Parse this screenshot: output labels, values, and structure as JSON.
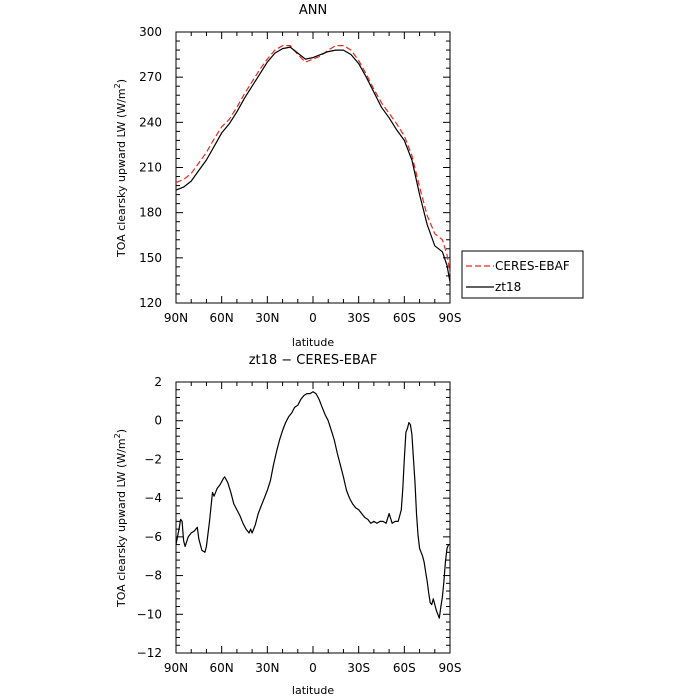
{
  "chart_data": [
    {
      "type": "line",
      "title": "ANN",
      "xlabel": "latitude",
      "ylabel": "TOA clearsky upward LW (W/m",
      "ylabel_sup": "2",
      "ylabel_end": ")",
      "xlim": [
        90,
        -90
      ],
      "ylim": [
        120,
        300
      ],
      "xticks": [
        {
          "value": 90,
          "label": "90N"
        },
        {
          "value": 60,
          "label": "60N"
        },
        {
          "value": 30,
          "label": "30N"
        },
        {
          "value": 0,
          "label": "0"
        },
        {
          "value": -30,
          "label": "30S"
        },
        {
          "value": -60,
          "label": "60S"
        },
        {
          "value": -90,
          "label": "90S"
        }
      ],
      "yticks": [
        120,
        150,
        180,
        210,
        240,
        270,
        300
      ],
      "legend": "outside-right-bottom",
      "series": [
        {
          "name": "CERES-EBAF",
          "color": "#e8281f",
          "dash": "6,3",
          "points": [
            [
              90,
              200
            ],
            [
              85,
              202
            ],
            [
              80,
              206
            ],
            [
              75,
              213
            ],
            [
              70,
              220
            ],
            [
              65,
              229
            ],
            [
              60,
              237
            ],
            [
              55,
              242
            ],
            [
              50,
              250
            ],
            [
              45,
              259
            ],
            [
              40,
              267
            ],
            [
              35,
              275
            ],
            [
              30,
              282
            ],
            [
              25,
              288
            ],
            [
              20,
              291
            ],
            [
              15,
              291
            ],
            [
              10,
              285
            ],
            [
              5,
              280
            ],
            [
              0,
              282
            ],
            [
              -5,
              284
            ],
            [
              -10,
              288
            ],
            [
              -15,
              291
            ],
            [
              -20,
              291
            ],
            [
              -25,
              288
            ],
            [
              -30,
              281
            ],
            [
              -35,
              272
            ],
            [
              -40,
              262
            ],
            [
              -45,
              253
            ],
            [
              -50,
              246
            ],
            [
              -55,
              239
            ],
            [
              -60,
              231
            ],
            [
              -65,
              218
            ],
            [
              -70,
              197
            ],
            [
              -75,
              178
            ],
            [
              -80,
              166
            ],
            [
              -85,
              162
            ],
            [
              -88,
              152
            ],
            [
              -90,
              140
            ]
          ]
        },
        {
          "name": "zt18",
          "color": "#000000",
          "dash": "",
          "points": [
            [
              90,
              195
            ],
            [
              85,
              197
            ],
            [
              80,
              201
            ],
            [
              75,
              208
            ],
            [
              70,
              215
            ],
            [
              65,
              224
            ],
            [
              60,
              233
            ],
            [
              55,
              239
            ],
            [
              50,
              247
            ],
            [
              45,
              256
            ],
            [
              40,
              264
            ],
            [
              35,
              272
            ],
            [
              30,
              280
            ],
            [
              25,
              286
            ],
            [
              20,
              289
            ],
            [
              15,
              290
            ],
            [
              10,
              286
            ],
            [
              5,
              282
            ],
            [
              0,
              283
            ],
            [
              -5,
              285
            ],
            [
              -10,
              287
            ],
            [
              -15,
              288
            ],
            [
              -20,
              288
            ],
            [
              -25,
              285
            ],
            [
              -30,
              279
            ],
            [
              -35,
              270
            ],
            [
              -40,
              260
            ],
            [
              -45,
              250
            ],
            [
              -50,
              243
            ],
            [
              -55,
              235
            ],
            [
              -60,
              228
            ],
            [
              -65,
              215
            ],
            [
              -70,
              192
            ],
            [
              -75,
              172
            ],
            [
              -80,
              158
            ],
            [
              -85,
              154
            ],
            [
              -88,
              145
            ],
            [
              -90,
              134
            ]
          ]
        }
      ]
    },
    {
      "type": "line",
      "title": "zt18 − CERES-EBAF",
      "xlabel": "latitude",
      "ylabel": "TOA clearsky upward LW (W/m",
      "ylabel_sup": "2",
      "ylabel_end": ")",
      "xlim": [
        90,
        -90
      ],
      "ylim": [
        -12,
        2
      ],
      "xticks": [
        {
          "value": 90,
          "label": "90N"
        },
        {
          "value": 60,
          "label": "60N"
        },
        {
          "value": 30,
          "label": "30N"
        },
        {
          "value": 0,
          "label": "0"
        },
        {
          "value": -30,
          "label": "30S"
        },
        {
          "value": -60,
          "label": "60S"
        },
        {
          "value": -90,
          "label": "90S"
        }
      ],
      "yticks": [
        -12,
        -10,
        -8,
        -6,
        -4,
        -2,
        0,
        2
      ],
      "series": [
        {
          "name": "",
          "color": "#000000",
          "dash": "",
          "points": [
            [
              90,
              -6.4
            ],
            [
              88,
              -5.6
            ],
            [
              87,
              -5.1
            ],
            [
              86,
              -5.2
            ],
            [
              85,
              -6.2
            ],
            [
              84,
              -6.5
            ],
            [
              82,
              -6.0
            ],
            [
              80,
              -5.8
            ],
            [
              78,
              -5.7
            ],
            [
              76,
              -5.5
            ],
            [
              75,
              -6.1
            ],
            [
              73,
              -6.7
            ],
            [
              71,
              -6.8
            ],
            [
              70,
              -6.5
            ],
            [
              68,
              -5.2
            ],
            [
              66,
              -3.7
            ],
            [
              65,
              -3.9
            ],
            [
              63,
              -3.5
            ],
            [
              61,
              -3.3
            ],
            [
              59,
              -3.0
            ],
            [
              58,
              -2.9
            ],
            [
              56,
              -3.2
            ],
            [
              54,
              -3.7
            ],
            [
              52,
              -4.3
            ],
            [
              50,
              -4.6
            ],
            [
              48,
              -4.9
            ],
            [
              46,
              -5.3
            ],
            [
              44,
              -5.6
            ],
            [
              42,
              -5.8
            ],
            [
              41,
              -5.6
            ],
            [
              40,
              -5.8
            ],
            [
              38,
              -5.4
            ],
            [
              36,
              -4.8
            ],
            [
              34,
              -4.4
            ],
            [
              32,
              -4.0
            ],
            [
              30,
              -3.6
            ],
            [
              28,
              -3.1
            ],
            [
              26,
              -2.3
            ],
            [
              24,
              -1.6
            ],
            [
              22,
              -1.0
            ],
            [
              20,
              -0.5
            ],
            [
              18,
              -0.1
            ],
            [
              16,
              0.2
            ],
            [
              14,
              0.4
            ],
            [
              12,
              0.7
            ],
            [
              10,
              0.8
            ],
            [
              8,
              1.1
            ],
            [
              6,
              1.3
            ],
            [
              4,
              1.4
            ],
            [
              2,
              1.4
            ],
            [
              0,
              1.5
            ],
            [
              -2,
              1.4
            ],
            [
              -4,
              1.1
            ],
            [
              -6,
              0.7
            ],
            [
              -8,
              0.3
            ],
            [
              -10,
              0.0
            ],
            [
              -12,
              -0.5
            ],
            [
              -14,
              -1.0
            ],
            [
              -16,
              -1.7
            ],
            [
              -18,
              -2.3
            ],
            [
              -20,
              -2.9
            ],
            [
              -22,
              -3.6
            ],
            [
              -24,
              -4.0
            ],
            [
              -26,
              -4.3
            ],
            [
              -28,
              -4.5
            ],
            [
              -30,
              -4.6
            ],
            [
              -32,
              -4.8
            ],
            [
              -34,
              -5.0
            ],
            [
              -36,
              -5.1
            ],
            [
              -38,
              -5.3
            ],
            [
              -40,
              -5.2
            ],
            [
              -42,
              -5.3
            ],
            [
              -44,
              -5.2
            ],
            [
              -46,
              -5.2
            ],
            [
              -48,
              -5.3
            ],
            [
              -50,
              -4.8
            ],
            [
              -52,
              -5.3
            ],
            [
              -54,
              -5.2
            ],
            [
              -56,
              -5.2
            ],
            [
              -58,
              -4.6
            ],
            [
              -59,
              -3.5
            ],
            [
              -60,
              -2.0
            ],
            [
              -61,
              -0.6
            ],
            [
              -62,
              -0.4
            ],
            [
              -63,
              -0.1
            ],
            [
              -64,
              -0.2
            ],
            [
              -65,
              -0.7
            ],
            [
              -66,
              -2.0
            ],
            [
              -67,
              -3.2
            ],
            [
              -68,
              -4.8
            ],
            [
              -69,
              -5.9
            ],
            [
              -70,
              -6.6
            ],
            [
              -71,
              -6.8
            ],
            [
              -72,
              -7.0
            ],
            [
              -73,
              -7.3
            ],
            [
              -74,
              -7.8
            ],
            [
              -75,
              -8.3
            ],
            [
              -76,
              -8.9
            ],
            [
              -77,
              -9.4
            ],
            [
              -78,
              -9.5
            ],
            [
              -79,
              -9.2
            ],
            [
              -80,
              -9.5
            ],
            [
              -81,
              -9.8
            ],
            [
              -82,
              -10.0
            ],
            [
              -83,
              -10.2
            ],
            [
              -84,
              -9.6
            ],
            [
              -85,
              -9.1
            ],
            [
              -86,
              -8.3
            ],
            [
              -87,
              -7.3
            ],
            [
              -88,
              -6.6
            ],
            [
              -89,
              -6.4
            ],
            [
              -90,
              -6.4
            ]
          ]
        }
      ]
    }
  ]
}
